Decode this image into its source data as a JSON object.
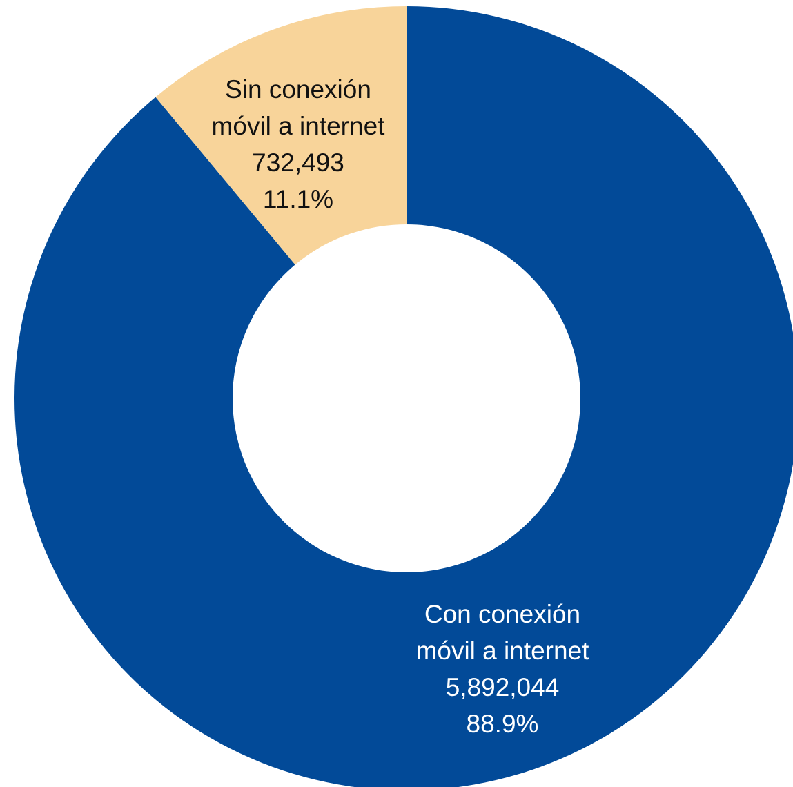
{
  "chart_data": {
    "type": "pie",
    "donut": true,
    "title": "",
    "slices": [
      {
        "name": "Con conexión móvil a internet",
        "label_lines": [
          "Con conexión",
          "móvil a internet"
        ],
        "value": 5892044,
        "value_label": "5,892,044",
        "percent": 88.9,
        "percent_label": "88.9%",
        "color": "#024A98",
        "label_color": "#FFFFFF"
      },
      {
        "name": "Sin conexión móvil a internet",
        "label_lines": [
          "Sin conexión",
          "móvil a internet"
        ],
        "value": 732493,
        "value_label": "732,493",
        "percent": 11.1,
        "percent_label": "11.1%",
        "color": "#F8D49A",
        "label_color": "#111111"
      }
    ],
    "legend": "none"
  }
}
